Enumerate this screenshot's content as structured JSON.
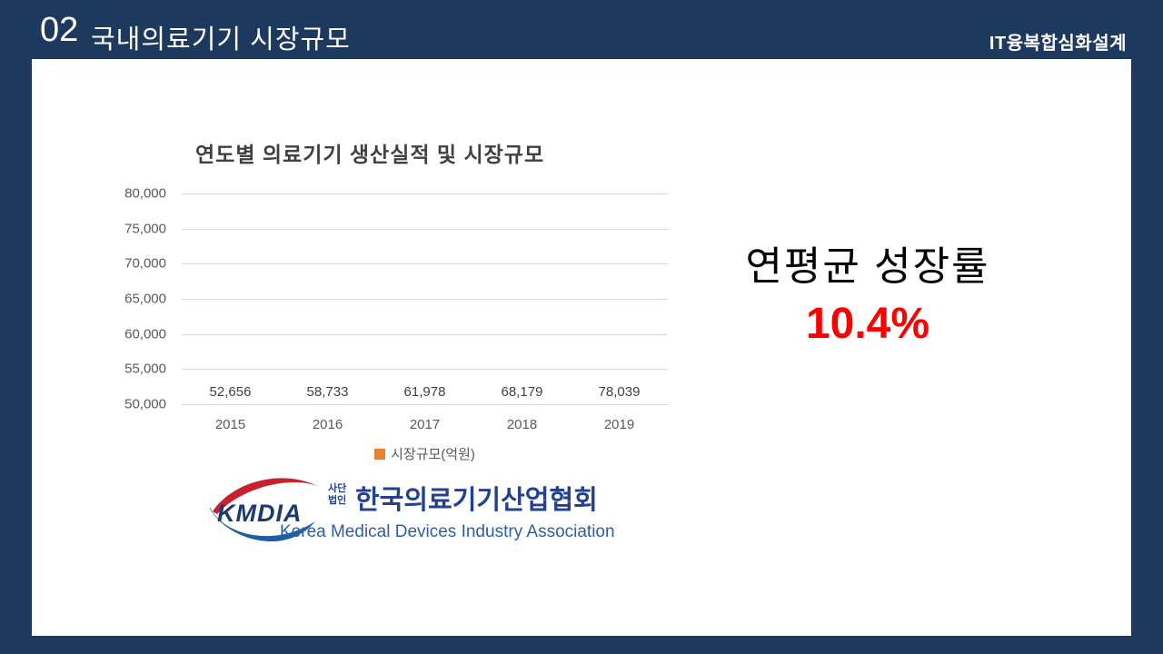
{
  "slide": {
    "bg_color": "#1d3a5e",
    "panel_color": "#ffffff"
  },
  "header": {
    "number": "02",
    "title": "국내의료기기 시장규모",
    "course_label": "IT융복합심화설계"
  },
  "chart_data": {
    "type": "bar",
    "title": "연도별 의료기기 생산실적 및 시장규모",
    "categories": [
      "2015",
      "2016",
      "2017",
      "2018",
      "2019"
    ],
    "values": [
      52656,
      58733,
      61978,
      68179,
      78039
    ],
    "value_labels": [
      "52,656",
      "58,733",
      "61,978",
      "68,179",
      "78,039"
    ],
    "ylim": [
      50000,
      80000
    ],
    "ytick_step": 5000,
    "ytick_labels_top_to_bottom": [
      "80,000",
      "75,000",
      "70,000",
      "65,000",
      "60,000",
      "55,000",
      "50,000"
    ],
    "grid": true,
    "legend_position": "bottom",
    "legend_label": "시장규모(억원)",
    "bar_color": "#ed7d31",
    "xlabel": "",
    "ylabel": ""
  },
  "growth": {
    "label": "연평균 성장률",
    "value": "10.4%",
    "value_color": "#ff0000"
  },
  "logo": {
    "acronym": "KMDIA",
    "org_type_line1": "사단",
    "org_type_line2": "법인",
    "org_name_kr": "한국의료기기산업협회",
    "org_name_en": "Korea Medical Devices Industry Association",
    "blue": "#24418f",
    "red": "#c8202f"
  }
}
